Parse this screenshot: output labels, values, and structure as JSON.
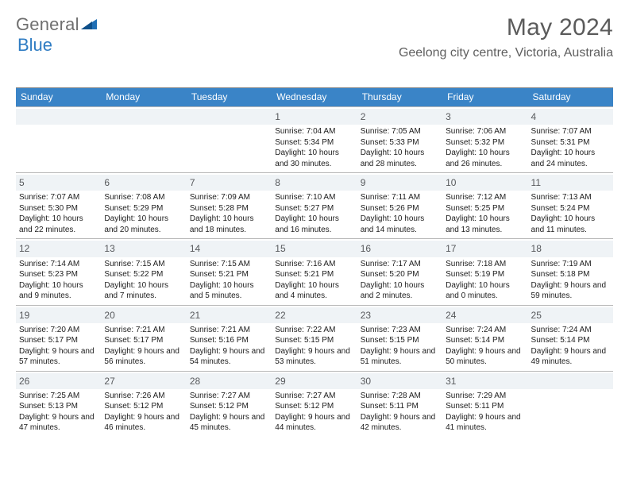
{
  "brand": {
    "word1": "General",
    "word2": "Blue"
  },
  "header": {
    "title": "May 2024",
    "location": "Geelong city centre, Victoria, Australia"
  },
  "calendar": {
    "header_bg": "#3a84c7",
    "header_text_color": "#ffffff",
    "daynum_bg": "#eff3f6",
    "border_color": "#b7b7b7",
    "days": [
      "Sunday",
      "Monday",
      "Tuesday",
      "Wednesday",
      "Thursday",
      "Friday",
      "Saturday"
    ],
    "weeks": [
      [
        null,
        null,
        null,
        {
          "n": "1",
          "sr": "Sunrise: 7:04 AM",
          "ss": "Sunset: 5:34 PM",
          "dl": "Daylight: 10 hours and 30 minutes."
        },
        {
          "n": "2",
          "sr": "Sunrise: 7:05 AM",
          "ss": "Sunset: 5:33 PM",
          "dl": "Daylight: 10 hours and 28 minutes."
        },
        {
          "n": "3",
          "sr": "Sunrise: 7:06 AM",
          "ss": "Sunset: 5:32 PM",
          "dl": "Daylight: 10 hours and 26 minutes."
        },
        {
          "n": "4",
          "sr": "Sunrise: 7:07 AM",
          "ss": "Sunset: 5:31 PM",
          "dl": "Daylight: 10 hours and 24 minutes."
        }
      ],
      [
        {
          "n": "5",
          "sr": "Sunrise: 7:07 AM",
          "ss": "Sunset: 5:30 PM",
          "dl": "Daylight: 10 hours and 22 minutes."
        },
        {
          "n": "6",
          "sr": "Sunrise: 7:08 AM",
          "ss": "Sunset: 5:29 PM",
          "dl": "Daylight: 10 hours and 20 minutes."
        },
        {
          "n": "7",
          "sr": "Sunrise: 7:09 AM",
          "ss": "Sunset: 5:28 PM",
          "dl": "Daylight: 10 hours and 18 minutes."
        },
        {
          "n": "8",
          "sr": "Sunrise: 7:10 AM",
          "ss": "Sunset: 5:27 PM",
          "dl": "Daylight: 10 hours and 16 minutes."
        },
        {
          "n": "9",
          "sr": "Sunrise: 7:11 AM",
          "ss": "Sunset: 5:26 PM",
          "dl": "Daylight: 10 hours and 14 minutes."
        },
        {
          "n": "10",
          "sr": "Sunrise: 7:12 AM",
          "ss": "Sunset: 5:25 PM",
          "dl": "Daylight: 10 hours and 13 minutes."
        },
        {
          "n": "11",
          "sr": "Sunrise: 7:13 AM",
          "ss": "Sunset: 5:24 PM",
          "dl": "Daylight: 10 hours and 11 minutes."
        }
      ],
      [
        {
          "n": "12",
          "sr": "Sunrise: 7:14 AM",
          "ss": "Sunset: 5:23 PM",
          "dl": "Daylight: 10 hours and 9 minutes."
        },
        {
          "n": "13",
          "sr": "Sunrise: 7:15 AM",
          "ss": "Sunset: 5:22 PM",
          "dl": "Daylight: 10 hours and 7 minutes."
        },
        {
          "n": "14",
          "sr": "Sunrise: 7:15 AM",
          "ss": "Sunset: 5:21 PM",
          "dl": "Daylight: 10 hours and 5 minutes."
        },
        {
          "n": "15",
          "sr": "Sunrise: 7:16 AM",
          "ss": "Sunset: 5:21 PM",
          "dl": "Daylight: 10 hours and 4 minutes."
        },
        {
          "n": "16",
          "sr": "Sunrise: 7:17 AM",
          "ss": "Sunset: 5:20 PM",
          "dl": "Daylight: 10 hours and 2 minutes."
        },
        {
          "n": "17",
          "sr": "Sunrise: 7:18 AM",
          "ss": "Sunset: 5:19 PM",
          "dl": "Daylight: 10 hours and 0 minutes."
        },
        {
          "n": "18",
          "sr": "Sunrise: 7:19 AM",
          "ss": "Sunset: 5:18 PM",
          "dl": "Daylight: 9 hours and 59 minutes."
        }
      ],
      [
        {
          "n": "19",
          "sr": "Sunrise: 7:20 AM",
          "ss": "Sunset: 5:17 PM",
          "dl": "Daylight: 9 hours and 57 minutes."
        },
        {
          "n": "20",
          "sr": "Sunrise: 7:21 AM",
          "ss": "Sunset: 5:17 PM",
          "dl": "Daylight: 9 hours and 56 minutes."
        },
        {
          "n": "21",
          "sr": "Sunrise: 7:21 AM",
          "ss": "Sunset: 5:16 PM",
          "dl": "Daylight: 9 hours and 54 minutes."
        },
        {
          "n": "22",
          "sr": "Sunrise: 7:22 AM",
          "ss": "Sunset: 5:15 PM",
          "dl": "Daylight: 9 hours and 53 minutes."
        },
        {
          "n": "23",
          "sr": "Sunrise: 7:23 AM",
          "ss": "Sunset: 5:15 PM",
          "dl": "Daylight: 9 hours and 51 minutes."
        },
        {
          "n": "24",
          "sr": "Sunrise: 7:24 AM",
          "ss": "Sunset: 5:14 PM",
          "dl": "Daylight: 9 hours and 50 minutes."
        },
        {
          "n": "25",
          "sr": "Sunrise: 7:24 AM",
          "ss": "Sunset: 5:14 PM",
          "dl": "Daylight: 9 hours and 49 minutes."
        }
      ],
      [
        {
          "n": "26",
          "sr": "Sunrise: 7:25 AM",
          "ss": "Sunset: 5:13 PM",
          "dl": "Daylight: 9 hours and 47 minutes."
        },
        {
          "n": "27",
          "sr": "Sunrise: 7:26 AM",
          "ss": "Sunset: 5:12 PM",
          "dl": "Daylight: 9 hours and 46 minutes."
        },
        {
          "n": "28",
          "sr": "Sunrise: 7:27 AM",
          "ss": "Sunset: 5:12 PM",
          "dl": "Daylight: 9 hours and 45 minutes."
        },
        {
          "n": "29",
          "sr": "Sunrise: 7:27 AM",
          "ss": "Sunset: 5:12 PM",
          "dl": "Daylight: 9 hours and 44 minutes."
        },
        {
          "n": "30",
          "sr": "Sunrise: 7:28 AM",
          "ss": "Sunset: 5:11 PM",
          "dl": "Daylight: 9 hours and 42 minutes."
        },
        {
          "n": "31",
          "sr": "Sunrise: 7:29 AM",
          "ss": "Sunset: 5:11 PM",
          "dl": "Daylight: 9 hours and 41 minutes."
        },
        null
      ]
    ]
  }
}
